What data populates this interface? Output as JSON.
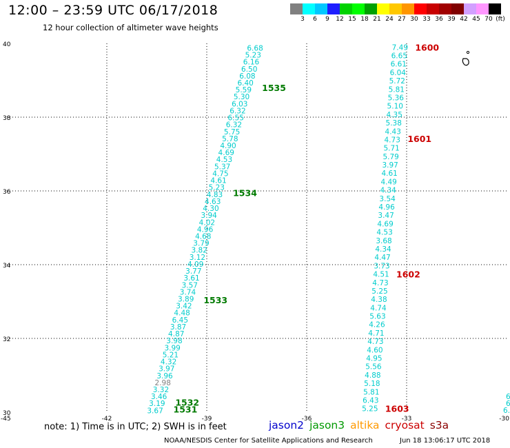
{
  "title": "12:00 – 23:59 UTC 06/17/2018",
  "subtitle": "12 hour collection of altimeter wave heights",
  "color_scale": {
    "unit": "(ft)",
    "colors": [
      "#808080",
      "#00ffff",
      "#00c8ff",
      "#1e1eff",
      "#00d200",
      "#00ff00",
      "#00a000",
      "#ffff00",
      "#ffc800",
      "#ff9600",
      "#ff0000",
      "#c80000",
      "#a00000",
      "#800000",
      "#d2a0ff",
      "#ff96ff",
      "#000000"
    ],
    "labels": [
      "3",
      "6",
      "9",
      "12",
      "15",
      "18",
      "21",
      "24",
      "27",
      "30",
      "33",
      "36",
      "39",
      "42",
      "45",
      "70"
    ]
  },
  "note": "note: 1) Time is in UTC; 2) SWH is in feet",
  "legend": [
    {
      "name": "jason2",
      "color": "#0000cc"
    },
    {
      "name": "jason3",
      "color": "#009900"
    },
    {
      "name": "altika",
      "color": "#ff9900"
    },
    {
      "name": "cryosat",
      "color": "#cc0000"
    },
    {
      "name": "s3a",
      "color": "#8b0000"
    }
  ],
  "footer": {
    "credit": "NOAA/NESDIS Center for Satellite Applications and Research",
    "timestamp": "Jun 18 13:06:17 UTC 2018"
  },
  "chart_data": {
    "type": "scatter",
    "x_range": [
      -45,
      -30
    ],
    "y_range": [
      30,
      40
    ],
    "x_ticks": [
      -45,
      -42,
      -39,
      -36,
      -33,
      -30
    ],
    "x_tick_labels": [
      "-45",
      "-42",
      "-39",
      "-36",
      "-33",
      "-30"
    ],
    "y_ticks": [
      30,
      32,
      34,
      36,
      38,
      40
    ],
    "y_tick_labels": [
      "30",
      "32",
      "34",
      "36",
      "38",
      "40"
    ],
    "grid": true,
    "track_a": {
      "lon_start": -40.55,
      "lat_start": 30.05,
      "lon_end": -37.55,
      "lat_end": 39.88,
      "swh": [
        "3.67",
        "3.19",
        "3.46",
        "3.32",
        "2.98",
        "3.96",
        "3.97",
        "4.32",
        "5.21",
        "3.99",
        "3.98",
        "4.87",
        "3.87",
        "6.45",
        "4.48",
        "3.42",
        "3.89",
        "3.74",
        "3.57",
        "3.61",
        "3.77",
        "4.09",
        "3.12",
        "3.82",
        "3.79",
        "4.68",
        "4.96",
        "4.02",
        "3.94",
        "4.30",
        "4.63",
        "4.83",
        "5.23",
        "4.61",
        "4.75",
        "5.37",
        "4.53",
        "4.69",
        "4.90",
        "5.78",
        "5.75",
        "6.32",
        "6.55",
        "6.32",
        "6.03",
        "5.30",
        "5.59",
        "6.40",
        "6.08",
        "6.50",
        "6.16",
        "5.23",
        "6.68"
      ],
      "labels": [
        {
          "time": "1531",
          "lat": 30.08,
          "color": "#007a00"
        },
        {
          "time": "1532",
          "lat": 30.27,
          "color": "#007a00"
        },
        {
          "time": "1533",
          "lat": 33.05,
          "color": "#007a00"
        },
        {
          "time": "1534",
          "lat": 35.95,
          "color": "#007a00"
        },
        {
          "time": "1535",
          "lat": 38.8,
          "color": "#007a00"
        }
      ]
    },
    "track_b": {
      "lon_start": -34.1,
      "lat_start": 30.1,
      "lon_end": -33.2,
      "lat_end": 39.9,
      "swh": [
        "5.25",
        "6.43",
        "5.81",
        "5.18",
        "4.88",
        "5.56",
        "4.95",
        "4.60",
        "4.73",
        "4.71",
        "4.26",
        "5.63",
        "4.74",
        "4.38",
        "5.25",
        "4.73",
        "4.51",
        "3.73",
        "4.47",
        "4.34",
        "3.68",
        "4.53",
        "4.69",
        "3.47",
        "4.96",
        "3.54",
        "4.34",
        "4.49",
        "4.61",
        "3.97",
        "5.79",
        "5.71",
        "4.73",
        "4.43",
        "5.38",
        "4.35",
        "5.10",
        "5.36",
        "5.81",
        "5.72",
        "6.04",
        "6.61",
        "6.65",
        "7.49"
      ],
      "labels": [
        {
          "time": "1600",
          "lat": 39.9,
          "color": "#cc0000"
        },
        {
          "time": "1601",
          "lat": 37.42,
          "color": "#cc0000"
        },
        {
          "time": "1602",
          "lat": 33.75,
          "color": "#cc0000"
        },
        {
          "time": "1603",
          "lat": 30.1,
          "color": "#cc0000"
        }
      ]
    },
    "track_c_partial": [
      "6",
      "6.",
      "6.2"
    ]
  }
}
